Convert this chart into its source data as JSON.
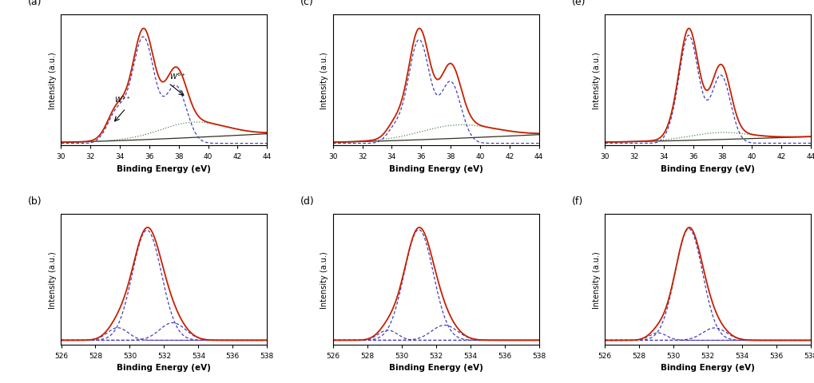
{
  "W4f_xlim": [
    30,
    44
  ],
  "W4f_xticks": [
    30,
    32,
    34,
    36,
    38,
    40,
    42,
    44
  ],
  "O1s_xlim": [
    526,
    538
  ],
  "O1s_xticks": [
    526,
    528,
    530,
    532,
    534,
    536,
    538
  ],
  "xlabel_W": "Binding Energy (eV)",
  "xlabel_O": "Binding Energy (eV)",
  "ylabel": "Intensity (a.u.)",
  "panel_labels": [
    "(a)",
    "(b)",
    "(c)",
    "(d)",
    "(e)",
    "(f)"
  ],
  "colors": {
    "envelope": "#c82000",
    "component_blue": "#4040bb",
    "component_green": "#508850",
    "background_line": "#303020",
    "bg_violet": "#8844aa"
  },
  "panels_W4f": {
    "a": {
      "g1_mu": 35.5,
      "g1_sig": 0.72,
      "g1_amp": 0.82,
      "g2_mu": 37.8,
      "g2_sig": 0.72,
      "g2_amp": 0.52,
      "g3_mu": 33.8,
      "g3_sig": 0.65,
      "g3_amp": 0.28,
      "g4_mu": 36.0,
      "g4_sig": 0.65,
      "g4_amp": 0.18,
      "gbg_mu": 39.0,
      "gbg_sig": 2.2,
      "gbg_amp": 0.14,
      "bg_base": 0.01,
      "bg_slope": 0.0025
    },
    "c": {
      "g1_mu": 35.8,
      "g1_sig": 0.7,
      "g1_amp": 0.88,
      "g2_mu": 38.0,
      "g2_sig": 0.7,
      "g2_amp": 0.55,
      "g3_mu": 34.2,
      "g3_sig": 0.55,
      "g3_amp": 0.12,
      "g4_mu": 36.4,
      "g4_sig": 0.55,
      "g4_amp": 0.08,
      "gbg_mu": 38.5,
      "gbg_sig": 2.5,
      "gbg_amp": 0.12,
      "bg_base": 0.01,
      "bg_slope": 0.0022
    },
    "e": {
      "g1_mu": 35.7,
      "g1_sig": 0.65,
      "g1_amp": 0.92,
      "g2_mu": 37.9,
      "g2_sig": 0.65,
      "g2_amp": 0.58,
      "g3_mu": 34.5,
      "g3_sig": 0.45,
      "g3_amp": 0.04,
      "g4_mu": 36.7,
      "g4_sig": 0.45,
      "g4_amp": 0.03,
      "gbg_mu": 37.8,
      "gbg_sig": 2.0,
      "gbg_amp": 0.06,
      "bg_base": 0.01,
      "bg_slope": 0.0015
    }
  },
  "panels_O1s": {
    "b": {
      "g1_mu": 531.0,
      "g1_sig": 0.85,
      "g1_amp": 0.88,
      "g2_mu": 532.5,
      "g2_sig": 0.75,
      "g2_amp": 0.14,
      "g3_mu": 529.3,
      "g3_sig": 0.6,
      "g3_amp": 0.1,
      "bg_val": 0.015
    },
    "d": {
      "g1_mu": 531.0,
      "g1_sig": 0.85,
      "g1_amp": 0.88,
      "g2_mu": 532.5,
      "g2_sig": 0.75,
      "g2_amp": 0.12,
      "g3_mu": 529.2,
      "g3_sig": 0.55,
      "g3_amp": 0.08,
      "bg_val": 0.015
    },
    "f": {
      "g1_mu": 530.9,
      "g1_sig": 0.8,
      "g1_amp": 0.9,
      "g2_mu": 532.4,
      "g2_sig": 0.7,
      "g2_amp": 0.1,
      "g3_mu": 529.1,
      "g3_sig": 0.5,
      "g3_amp": 0.06,
      "bg_val": 0.015
    }
  }
}
